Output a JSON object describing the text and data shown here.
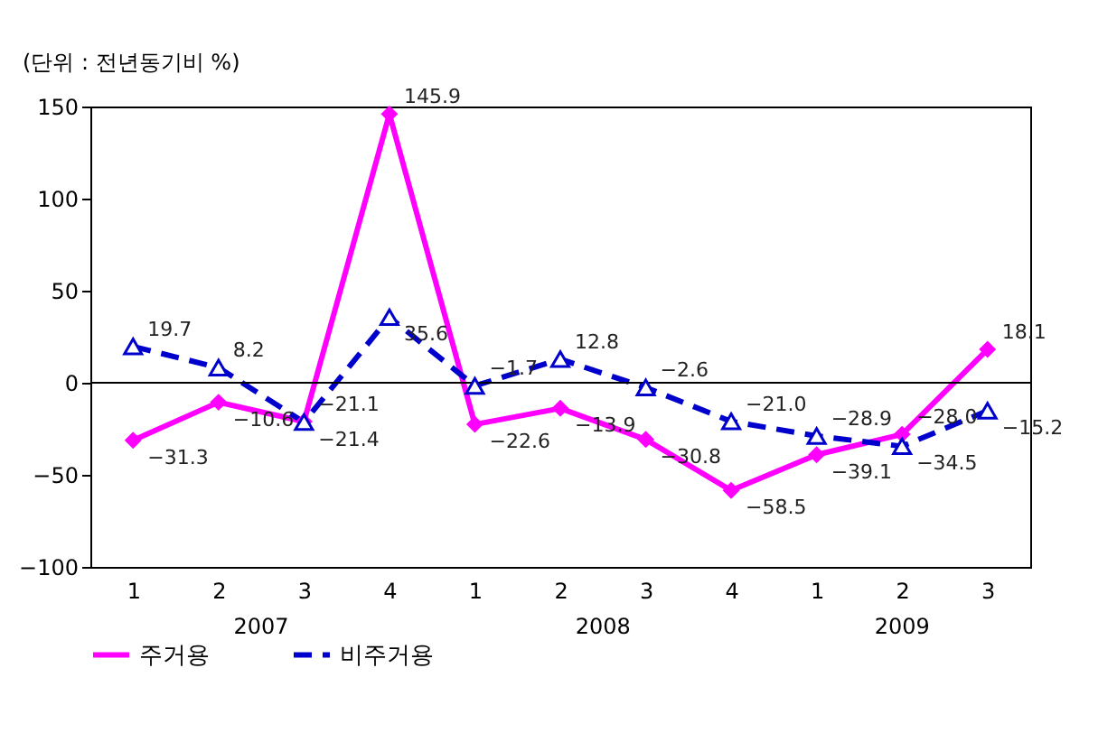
{
  "chart_data": {
    "type": "line",
    "ylabel": "(단위 : 전년동기비 %)",
    "categories": [
      "1",
      "2",
      "3",
      "4",
      "1",
      "2",
      "3",
      "4",
      "1",
      "2",
      "3"
    ],
    "annotations": [
      "2007",
      "2008",
      "2009"
    ],
    "series": [
      {
        "name": "주거용",
        "color": "#ff00ff",
        "marker": "diamond",
        "line_style": "solid",
        "values": [
          -31.3,
          -10.6,
          -21.1,
          145.9,
          -22.6,
          -13.9,
          -30.8,
          -58.5,
          -39.1,
          -28.0,
          18.1
        ],
        "value_labels": [
          "−31.3",
          "−10.6",
          "−21.1",
          "145.9",
          "−22.6",
          "−13.9",
          "−30.8",
          "−58.5",
          "−39.1",
          "−28.0",
          "18.1"
        ]
      },
      {
        "name": "비주거용",
        "color": "#0000cc",
        "marker": "triangle",
        "line_style": "dashed",
        "values": [
          19.7,
          8.2,
          -21.4,
          35.6,
          -1.7,
          12.8,
          -2.6,
          -21.0,
          -28.9,
          -34.5,
          -15.2
        ],
        "value_labels": [
          "19.7",
          "8.2",
          "−21.4",
          "35.6",
          "−1.7",
          "12.8",
          "−2.6",
          "−21.0",
          "−28.9",
          "−34.5",
          "−15.2"
        ]
      }
    ],
    "ylim": [
      -100,
      150
    ],
    "yticks": [
      -100,
      -50,
      0,
      50,
      100,
      150
    ],
    "ref_lines": [
      {
        "axis": "y",
        "value": 0
      }
    ],
    "legend": "bottom"
  }
}
